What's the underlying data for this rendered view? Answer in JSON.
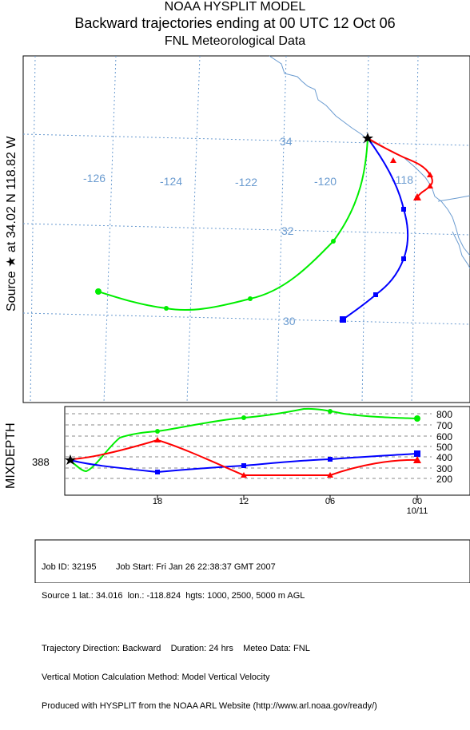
{
  "header": {
    "line1": "NOAA HYSPLIT MODEL",
    "line2": "Backward trajectories ending at 00 UTC 12 Oct 06",
    "line3": "FNL  Meteorological Data"
  },
  "map": {
    "source_label": "Source ★ at   34.02 N  118.82 W",
    "longitude_labels": [
      "-126",
      "-124",
      "-122",
      "-120",
      "-118"
    ],
    "latitude_labels": [
      "34",
      "32",
      "30"
    ],
    "grid_color": "#6a9bd0",
    "coast_color": "#6a9bd0"
  },
  "mixdepth": {
    "axis_label": "MIXDEPTH",
    "source_value": "388",
    "height_ticks": [
      "800",
      "700",
      "600",
      "500",
      "400",
      "300",
      "200"
    ],
    "time_ticks": [
      "18",
      "12",
      "06",
      "00"
    ],
    "date_label": "10/11"
  },
  "trajectories": [
    {
      "name": "1000 m AGL",
      "color": "#ff0000",
      "marker": "triangle"
    },
    {
      "name": "2500 m AGL",
      "color": "#0000ff",
      "marker": "square"
    },
    {
      "name": "5000 m AGL",
      "color": "#00ee00",
      "marker": "circle"
    }
  ],
  "footer": {
    "job_id": "Job ID: 32195",
    "job_start": "Job Start: Fri Jan 26 22:38:37 GMT 2007",
    "source_line": "Source 1 lat.: 34.016  lon.: -118.824  hgts: 1000, 2500, 5000 m AGL",
    "direction_line": "Trajectory Direction: Backward    Duration: 24 hrs    Meteo Data: FNL",
    "vertical_line": "Vertical Motion Calculation Method: Model Vertical Velocity",
    "produced_line": "Produced with HYSPLIT from the NOAA ARL Website (http://www.arl.noaa.gov/ready/)"
  }
}
